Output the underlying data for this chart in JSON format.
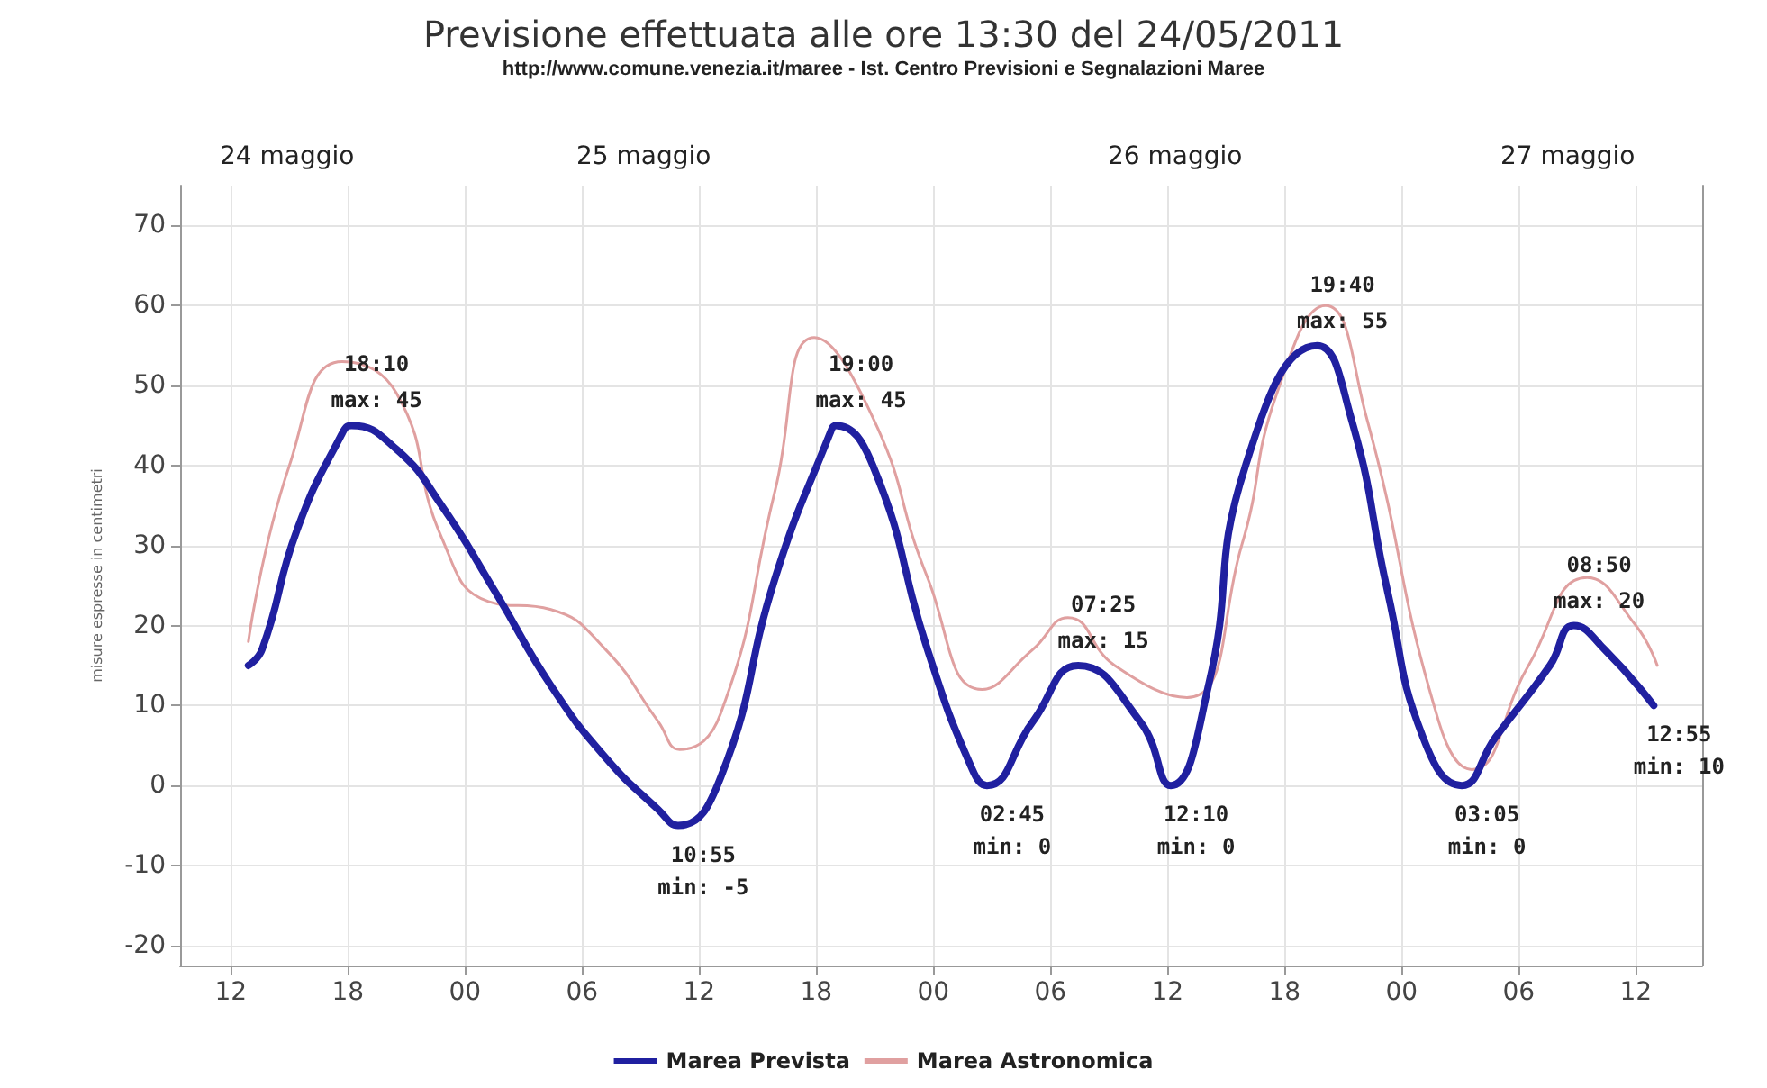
{
  "chart_data": {
    "type": "line",
    "title": "Previsione effettuata alle ore 13:30 del 24/05/2011",
    "subtitle": "http://www.comune.venezia.it/maree - Ist. Centro Previsioni e Segnalazioni Maree",
    "ylabel": "misure espresse in centimetri",
    "series": [
      {
        "name": "Marea Prevista",
        "color": "#2020a0",
        "x": [
          12.9,
          13.6,
          15.4,
          17.7,
          18.17,
          20.5,
          22.8,
          25.6,
          28.4,
          31.2,
          33.9,
          34.92,
          37.1,
          39.9,
          42.7,
          43,
          44.9,
          47.7,
          50,
          50.75,
          53.1,
          55.42,
          58.6,
          60.17,
          62.1,
          64,
          67.67,
          69.4,
          71.3,
          73.1,
          75.08,
          76.8,
          79.6,
          80.83,
          82.4,
          84.92
        ],
        "values": [
          15,
          17,
          32,
          44,
          45,
          42,
          35,
          24,
          12.5,
          3.5,
          -3,
          -5,
          1,
          26,
          44,
          45,
          40,
          17,
          2,
          0,
          8,
          15,
          8,
          0,
          12.5,
          40,
          55,
          46,
          24,
          6,
          0,
          6,
          15,
          20,
          17,
          10
        ]
      },
      {
        "name": "Marea Astronomica",
        "color": "#e0a0a0",
        "x": [
          12.9,
          15,
          17.7,
          20.5,
          22.8,
          25.2,
          28.4,
          31.2,
          33.9,
          35,
          37.1,
          39.9,
          41.9,
          44.9,
          47.7,
          50.5,
          53.1,
          54.9,
          57.3,
          61,
          63.8,
          65.6,
          68.1,
          70.2,
          73.9,
          75.6,
          78.5,
          81.5,
          84,
          85.1
        ],
        "values": [
          18,
          40,
          53,
          49,
          31,
          23,
          22,
          17,
          8,
          4.5,
          9,
          37,
          56,
          46,
          26,
          12,
          17,
          21,
          15,
          11,
          30,
          49,
          60,
          46,
          8,
          2,
          15,
          26,
          20,
          15
        ]
      }
    ],
    "xlim": [
      9.4,
      87.4
    ],
    "xticks": [
      {
        "value": 12,
        "label": "12"
      },
      {
        "value": 18,
        "label": "18"
      },
      {
        "value": 24,
        "label": "00"
      },
      {
        "value": 30,
        "label": "06"
      },
      {
        "value": 36,
        "label": "12"
      },
      {
        "value": 42,
        "label": "18"
      },
      {
        "value": 48,
        "label": "00"
      },
      {
        "value": 54,
        "label": "06"
      },
      {
        "value": 60,
        "label": "12"
      },
      {
        "value": 66,
        "label": "18"
      },
      {
        "value": 72,
        "label": "00"
      },
      {
        "value": 78,
        "label": "06"
      },
      {
        "value": 84,
        "label": "12"
      }
    ],
    "ylim": [
      -22.5,
      75
    ],
    "yticks": [
      -20,
      -10,
      0,
      10,
      20,
      30,
      40,
      50,
      60,
      70
    ],
    "annotations": [
      "24 maggio",
      "25 maggio",
      "26 maggio",
      "27 maggio",
      {
        "text": "18:10",
        "x": 18.17,
        "y": 45
      },
      {
        "text": "max: 45",
        "x": 18.17,
        "y": 45
      },
      {
        "text": "10:55",
        "x": 34.92,
        "y": -5
      },
      {
        "text": "min: -5",
        "x": 34.92,
        "y": -5
      },
      {
        "text": "19:00",
        "x": 43,
        "y": 45
      },
      {
        "text": "max: 45",
        "x": 43,
        "y": 45
      },
      {
        "text": "02:45",
        "x": 50.75,
        "y": 0
      },
      {
        "text": "min: 0",
        "x": 50.75,
        "y": 0
      },
      {
        "text": "07:25",
        "x": 55.42,
        "y": 15
      },
      {
        "text": "max: 15",
        "x": 55.42,
        "y": 15
      },
      {
        "text": "12:10",
        "x": 60.17,
        "y": 0
      },
      {
        "text": "min: 0",
        "x": 60.17,
        "y": 0
      },
      {
        "text": "19:40",
        "x": 67.67,
        "y": 55
      },
      {
        "text": "max: 55",
        "x": 67.67,
        "y": 55
      },
      {
        "text": "03:05",
        "x": 75.08,
        "y": 0
      },
      {
        "text": "min: 0",
        "x": 75.08,
        "y": 0
      },
      {
        "text": "08:50",
        "x": 80.83,
        "y": 20
      },
      {
        "text": "max: 20",
        "x": 80.83,
        "y": 20
      },
      {
        "text": "12:55",
        "x": 84.92,
        "y": 10
      },
      {
        "text": "min: 10",
        "x": 84.92,
        "y": 10
      }
    ],
    "grid": true,
    "legend": "bottom",
    "marker": "none",
    "line_style": "solid"
  }
}
